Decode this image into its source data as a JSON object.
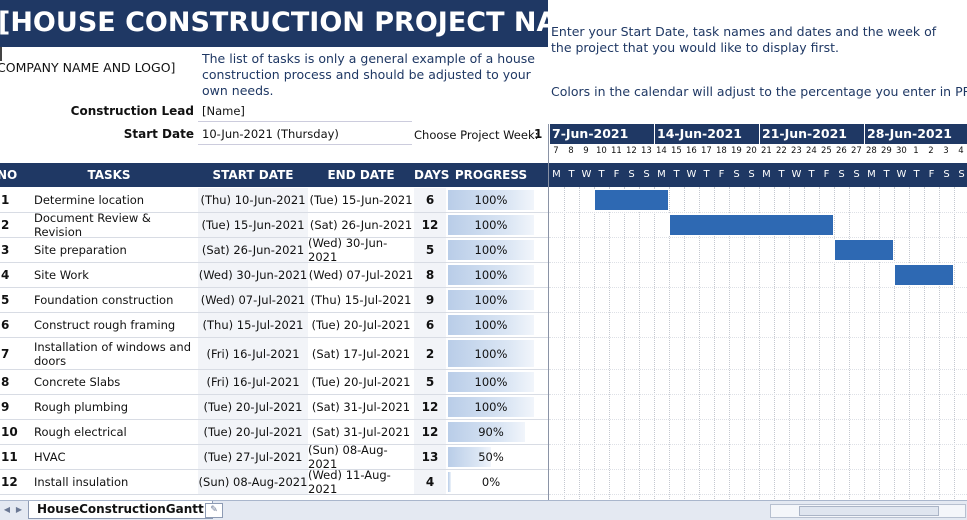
{
  "title": "[HOUSE CONSTRUCTION PROJECT NAME]",
  "company": "COMPANY NAME AND LOGO]",
  "info_note": "The list of tasks is only a general example of a house construction process and should be adjusted to your own needs.",
  "instructions": {
    "line1": "Enter your Start Date, task names and dates and the week of",
    "line2": "the project that you would like to display first.",
    "line3": "Colors in the calendar will adjust to the percentage you enter in PROGR"
  },
  "lead_label": "Construction Lead",
  "lead_value": "[Name]",
  "start_label": "Start Date",
  "start_value": "10-Jun-2021 (Thursday)",
  "week_label": "Choose Project Week:",
  "week_value": "1",
  "headers": {
    "no": "NO",
    "tasks": "TASKS",
    "start": "START DATE",
    "end": "END DATE",
    "days": "DAYS",
    "progress": "PROGRESS"
  },
  "tasks": [
    {
      "no": "1",
      "task": "Determine location",
      "start": "(Thu) 10-Jun-2021",
      "end": "(Tue) 15-Jun-2021",
      "days": "6",
      "progress": "100%",
      "pct": 1.0
    },
    {
      "no": "2",
      "task": "Document Review & Revision",
      "start": "(Tue) 15-Jun-2021",
      "end": "(Sat) 26-Jun-2021",
      "days": "12",
      "progress": "100%",
      "pct": 1.0
    },
    {
      "no": "3",
      "task": "Site preparation",
      "start": "(Sat) 26-Jun-2021",
      "end": "(Wed) 30-Jun-2021",
      "days": "5",
      "progress": "100%",
      "pct": 1.0
    },
    {
      "no": "4",
      "task": "Site Work",
      "start": "(Wed) 30-Jun-2021",
      "end": "(Wed) 07-Jul-2021",
      "days": "8",
      "progress": "100%",
      "pct": 1.0
    },
    {
      "no": "5",
      "task": "Foundation construction",
      "start": "(Wed) 07-Jul-2021",
      "end": "(Thu) 15-Jul-2021",
      "days": "9",
      "progress": "100%",
      "pct": 1.0
    },
    {
      "no": "6",
      "task": "Construct rough framing",
      "start": "(Thu) 15-Jul-2021",
      "end": "(Tue) 20-Jul-2021",
      "days": "6",
      "progress": "100%",
      "pct": 1.0
    },
    {
      "no": "7",
      "task": "Installation of windows and doors",
      "start": "(Fri) 16-Jul-2021",
      "end": "(Sat) 17-Jul-2021",
      "days": "2",
      "progress": "100%",
      "pct": 1.0
    },
    {
      "no": "8",
      "task": "Concrete Slabs",
      "start": "(Fri) 16-Jul-2021",
      "end": "(Tue) 20-Jul-2021",
      "days": "5",
      "progress": "100%",
      "pct": 1.0
    },
    {
      "no": "9",
      "task": "Rough plumbing",
      "start": "(Tue) 20-Jul-2021",
      "end": "(Sat) 31-Jul-2021",
      "days": "12",
      "progress": "100%",
      "pct": 1.0
    },
    {
      "no": "10",
      "task": "Rough electrical",
      "start": "(Tue) 20-Jul-2021",
      "end": "(Sat) 31-Jul-2021",
      "days": "12",
      "progress": "90%",
      "pct": 0.9
    },
    {
      "no": "11",
      "task": "HVAC",
      "start": "(Tue) 27-Jul-2021",
      "end": "(Sun) 08-Aug-2021",
      "days": "13",
      "progress": "50%",
      "pct": 0.5
    },
    {
      "no": "12",
      "task": "Install insulation",
      "start": "(Sun) 08-Aug-2021",
      "end": "(Wed) 11-Aug-2021",
      "days": "4",
      "progress": "0%",
      "pct": 0.0
    }
  ],
  "calendar": {
    "weeks": [
      "7-Jun-2021",
      "14-Jun-2021",
      "21-Jun-2021",
      "28-Jun-2021"
    ],
    "day_numbers": [
      "7",
      "8",
      "9",
      "10",
      "11",
      "12",
      "13",
      "14",
      "15",
      "16",
      "17",
      "18",
      "19",
      "20",
      "21",
      "22",
      "23",
      "24",
      "25",
      "26",
      "27",
      "28",
      "29",
      "30",
      "1",
      "2",
      "3",
      "4"
    ],
    "weekday_letters": [
      "M",
      "T",
      "W",
      "T",
      "F",
      "S",
      "S",
      "M",
      "T",
      "W",
      "T",
      "F",
      "S",
      "S",
      "M",
      "T",
      "W",
      "T",
      "F",
      "S",
      "S",
      "M",
      "T",
      "W",
      "T",
      "F",
      "S",
      "S"
    ]
  },
  "gantt_bars": [
    {
      "row": 0,
      "start_day": 3,
      "end_day": 8
    },
    {
      "row": 1,
      "start_day": 8,
      "end_day": 19
    },
    {
      "row": 2,
      "start_day": 19,
      "end_day": 23
    },
    {
      "row": 3,
      "start_day": 23,
      "end_day": 27
    }
  ],
  "sheet_tab": "HouseConstructionGantt",
  "colors": {
    "header": "#1f3864",
    "bar": "#2e69b3",
    "progress": "#b9cde8"
  }
}
